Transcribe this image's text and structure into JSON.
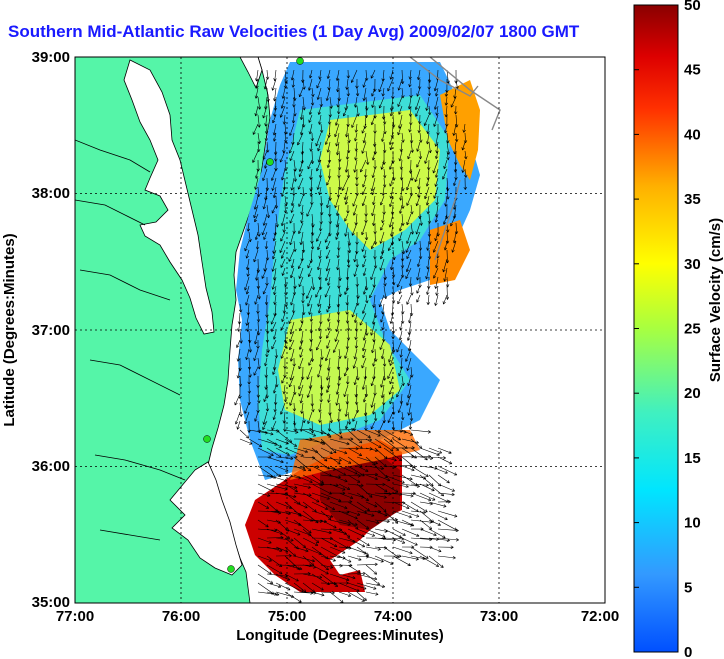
{
  "title": "Southern Mid-Atlantic Raw Velocities (1 Day Avg) 2009/02/07 1800 GMT",
  "map": {
    "xlabel": "Longitude (Degrees:Minutes)",
    "ylabel": "Latitude (Degrees:Minutes)",
    "x_ticks": [
      "77:00",
      "76:00",
      "75:00",
      "74:00",
      "73:00",
      "72:00"
    ],
    "y_ticks": [
      "39:00",
      "38:00",
      "37:00",
      "36:00",
      "35:00"
    ],
    "xlim": [
      -77,
      -72
    ],
    "ylim": [
      35,
      39
    ],
    "grid": "dotted"
  },
  "colorbar": {
    "label": "Surface Velocity (cm/s)",
    "ticks": [
      "0",
      "5",
      "10",
      "15",
      "20",
      "25",
      "30",
      "35",
      "40",
      "45",
      "50"
    ],
    "range": [
      0,
      50
    ],
    "colormap": "jet"
  },
  "colors": {
    "land": "#55f5a8",
    "title": "#1a1aff",
    "station": "#22dd22",
    "bathymetry": "#888888"
  }
}
